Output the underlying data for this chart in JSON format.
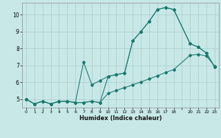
{
  "xlabel": "Humidex (Indice chaleur)",
  "bg_color": "#c8e8e8",
  "line_color": "#1a7a6e",
  "grid_color": "#aacaca",
  "xlim": [
    -0.5,
    23.5
  ],
  "ylim": [
    4.5,
    10.7
  ],
  "xtick_pos": [
    0,
    1,
    2,
    3,
    4,
    5,
    6,
    7,
    8,
    9,
    10,
    11,
    12,
    13,
    14,
    15,
    16,
    17,
    18,
    19,
    20,
    21,
    22,
    23
  ],
  "xtick_labels": [
    "0",
    "1",
    "2",
    "3",
    "4",
    "5",
    "6",
    "7",
    "8",
    "9",
    "10",
    "11",
    "12",
    "13",
    "14",
    "15",
    "16",
    "17",
    "18",
    "",
    "20",
    "21",
    "22",
    "23"
  ],
  "ytick_pos": [
    5,
    6,
    7,
    8,
    9,
    10
  ],
  "ytick_labels": [
    "5",
    "6",
    "7",
    "8",
    "9",
    "10"
  ],
  "line1_x": [
    0,
    1,
    2,
    3,
    4,
    5,
    6,
    7,
    8,
    9,
    10,
    11,
    12,
    13,
    14,
    15,
    16,
    17,
    18,
    20,
    21,
    22,
    23
  ],
  "line1_y": [
    5.0,
    4.72,
    4.88,
    4.72,
    4.88,
    4.88,
    4.8,
    4.8,
    4.88,
    4.8,
    6.35,
    6.45,
    6.55,
    8.45,
    9.0,
    9.6,
    10.3,
    10.42,
    10.3,
    8.28,
    8.08,
    7.72,
    6.9
  ],
  "line2_x": [
    0,
    1,
    2,
    3,
    4,
    5,
    6,
    7,
    8,
    9,
    10,
    11,
    12,
    13,
    14,
    15,
    16,
    17,
    18,
    20,
    21,
    22,
    23
  ],
  "line2_y": [
    5.0,
    4.72,
    4.88,
    4.72,
    4.88,
    4.88,
    4.8,
    7.2,
    5.85,
    6.1,
    6.35,
    6.45,
    6.55,
    8.45,
    9.0,
    9.6,
    10.3,
    10.42,
    10.3,
    8.28,
    8.08,
    7.72,
    6.9
  ],
  "line3_x": [
    0,
    1,
    2,
    3,
    4,
    5,
    6,
    7,
    8,
    9,
    10,
    11,
    12,
    13,
    14,
    15,
    16,
    17,
    18,
    20,
    21,
    22,
    23
  ],
  "line3_y": [
    5.0,
    4.72,
    4.88,
    4.72,
    4.88,
    4.88,
    4.8,
    4.8,
    4.88,
    4.8,
    5.35,
    5.52,
    5.68,
    5.85,
    6.02,
    6.2,
    6.38,
    6.58,
    6.75,
    7.6,
    7.65,
    7.55,
    6.95
  ]
}
